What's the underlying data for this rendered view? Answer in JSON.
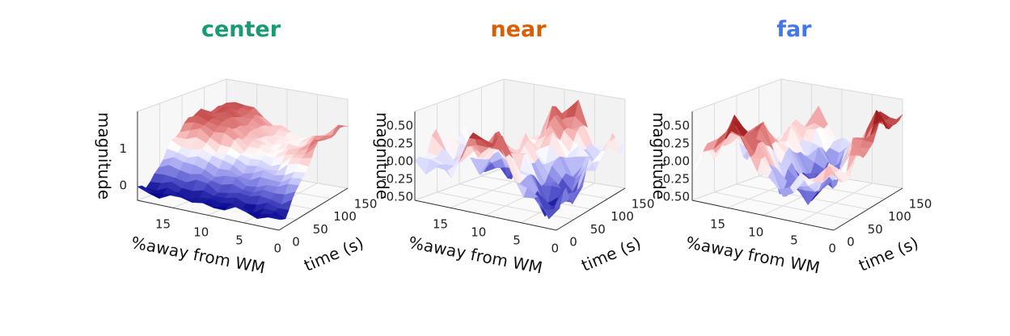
{
  "chart_data": [
    {
      "type": "surface3d",
      "title": "center",
      "title_color": "#1a9a73",
      "xlabel": "%away from WM",
      "ylabel": "time (s)",
      "zlabel": "magnitude",
      "x_ticks": [
        "15",
        "10",
        "5",
        "0"
      ],
      "y_ticks": [
        "0",
        "50",
        "100",
        "150"
      ],
      "z_ticks": [
        "0",
        "1"
      ],
      "xlim": [
        0,
        19
      ],
      "ylim": [
        0,
        170
      ],
      "zlim": [
        -0.4,
        2.0
      ],
      "colormap": "bwr",
      "grid": true,
      "profile": "rise-plateau",
      "peak": 1.7,
      "trough": -0.2
    },
    {
      "type": "surface3d",
      "title": "near",
      "title_color": "#d95f02",
      "xlabel": "%away from WM",
      "ylabel": "time (s)",
      "zlabel": "magnitude",
      "x_ticks": [
        "15",
        "10",
        "5",
        "0"
      ],
      "y_ticks": [
        "0",
        "50",
        "100",
        "150"
      ],
      "z_ticks": [
        "0.50",
        "0.25",
        "0.00",
        "-0.25",
        "-0.50"
      ],
      "xlim": [
        0,
        19
      ],
      "ylim": [
        0,
        170
      ],
      "zlim": [
        -0.55,
        0.7
      ],
      "colormap": "bwr",
      "grid": true,
      "profile": "oscillating",
      "peak": 0.62,
      "trough": -0.5
    },
    {
      "type": "surface3d",
      "title": "far",
      "title_color": "#4477ee",
      "xlabel": "%away from WM",
      "ylabel": "time (s)",
      "zlabel": "magnitude",
      "x_ticks": [
        "15",
        "10",
        "5",
        "0"
      ],
      "y_ticks": [
        "0",
        "50",
        "100",
        "150"
      ],
      "z_ticks": [
        "0.50",
        "0.25",
        "0.00",
        "-0.25",
        "-0.50"
      ],
      "xlim": [
        0,
        19
      ],
      "ylim": [
        0,
        170
      ],
      "zlim": [
        -0.55,
        0.7
      ],
      "colormap": "bwr",
      "grid": true,
      "profile": "oscillating",
      "peak": 0.6,
      "trough": -0.52
    }
  ]
}
